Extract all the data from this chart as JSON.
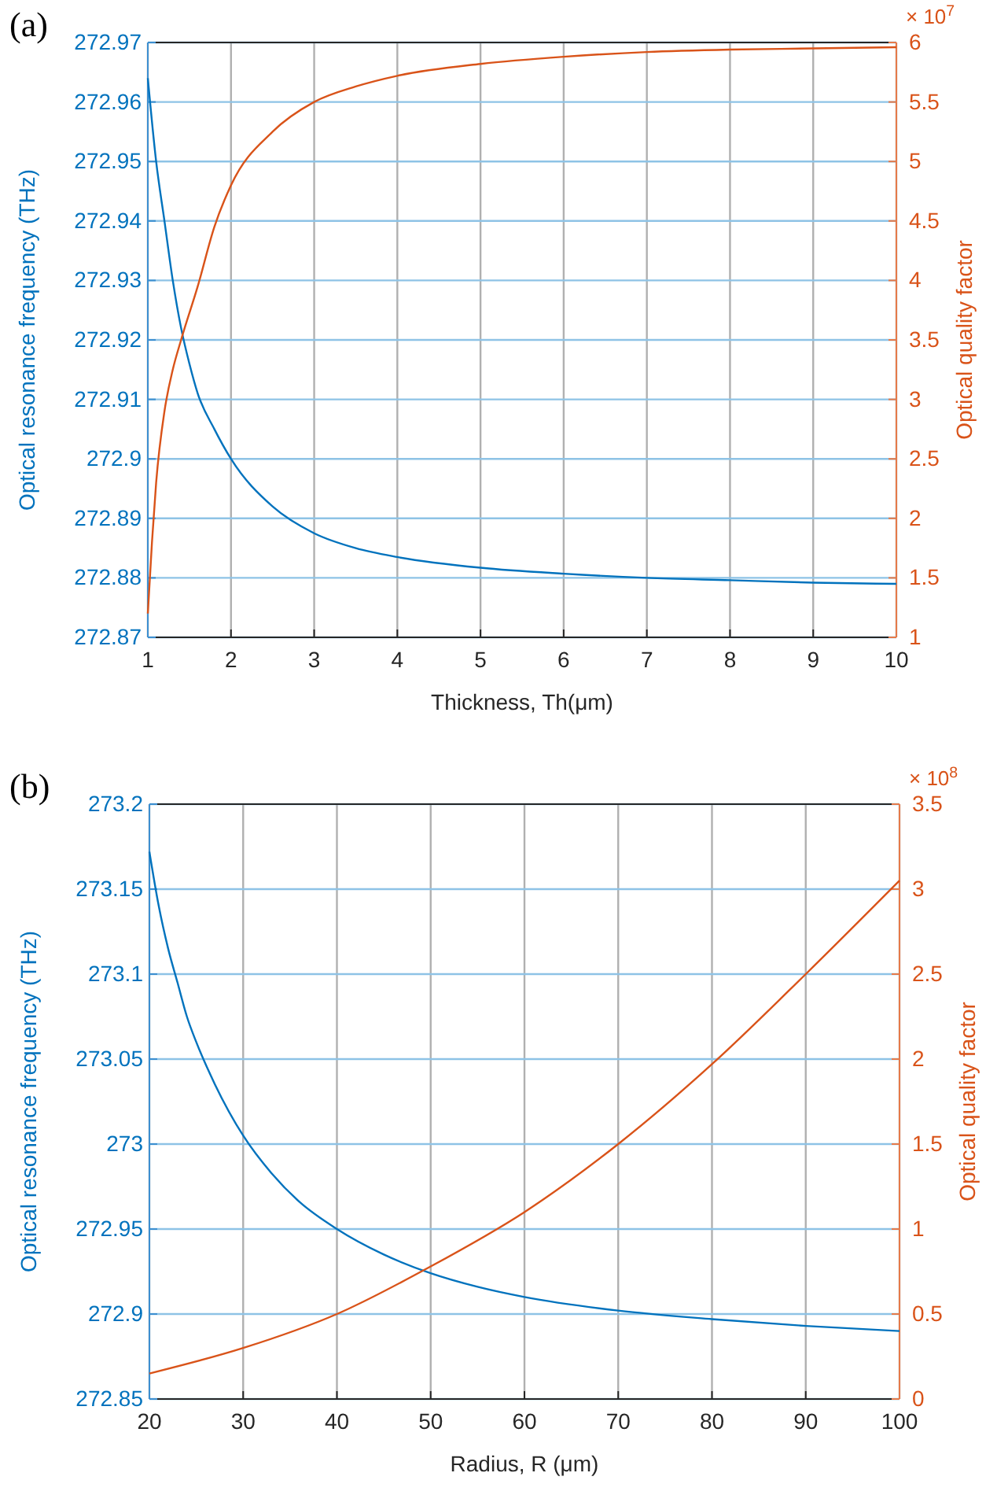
{
  "chart_data": [
    {
      "type": "line",
      "title": "(a)",
      "xlabel": "Thickness, Th(μm)",
      "ylabel": "Optical resonance frequency (THz)",
      "y2label": "Optical quality factor",
      "annotations": [
        "× 10$^{7}$"
      ],
      "grid": true,
      "xlim": [
        1,
        10
      ],
      "xticks": [
        1,
        2,
        3,
        4,
        5,
        6,
        7,
        8,
        9,
        10
      ],
      "ylim": [
        272.87,
        272.97
      ],
      "yticks": [
        272.87,
        272.88,
        272.89,
        {
          "value": 272.9,
          "label": "272.9"
        },
        272.91,
        272.92,
        272.93,
        272.94,
        272.95,
        272.96,
        272.97
      ],
      "y2lim": [
        1,
        6
      ],
      "y2ticks": [
        1,
        1.5,
        2,
        2.5,
        3,
        3.5,
        4,
        4.5,
        5,
        5.5,
        6
      ],
      "series": [
        {
          "color": "#0072bd",
          "x": [
            1,
            1.1,
            1.2,
            1.3,
            1.4,
            1.5,
            1.6,
            1.8,
            2,
            2.5,
            3,
            3.5,
            4,
            5,
            6,
            7,
            8,
            9,
            10
          ],
          "values": [
            272.964,
            272.95,
            272.94,
            272.93,
            272.922,
            272.916,
            272.911,
            272.905,
            272.9,
            272.892,
            272.8875,
            272.885,
            272.8835,
            272.8817,
            272.8807,
            272.88,
            272.8796,
            272.8792,
            272.879
          ]
        },
        {
          "color": "#d95319",
          "axis": "y2",
          "x": [
            1,
            1.05,
            1.1,
            1.2,
            1.3,
            1.4,
            1.6,
            1.8,
            2,
            2.5,
            3,
            3.5,
            4,
            5,
            6,
            7,
            8,
            9,
            10
          ],
          "values": [
            1.2,
            1.8,
            2.3,
            2.9,
            3.25,
            3.5,
            3.95,
            4.45,
            4.8,
            5.25,
            5.5,
            5.63,
            5.72,
            5.82,
            5.88,
            5.92,
            5.94,
            5.95,
            5.96
          ]
        }
      ]
    },
    {
      "type": "line",
      "title": "(b)",
      "xlabel": "Radius, R (μm)",
      "ylabel": "Optical resonance frequency (THz)",
      "y2label": "Optical quality factor",
      "annotations": [
        "× 10$^{8}$"
      ],
      "grid": true,
      "xlim": [
        20,
        100
      ],
      "xticks": [
        20,
        30,
        40,
        50,
        60,
        70,
        80,
        90,
        100
      ],
      "ylim": [
        272.85,
        273.2
      ],
      "yticks": [
        272.85,
        {
          "value": 272.9,
          "label": "272.9"
        },
        272.95,
        {
          "value": 273,
          "label": "273"
        },
        273.05,
        {
          "value": 273.1,
          "label": "273.1"
        },
        273.15,
        {
          "value": 273.2,
          "label": "273.2"
        }
      ],
      "y2lim": [
        0,
        3.5
      ],
      "y2ticks": [
        0,
        0.5,
        1,
        1.5,
        2,
        2.5,
        3,
        3.5
      ],
      "series": [
        {
          "color": "#0072bd",
          "x": [
            20,
            21,
            22,
            23,
            24,
            25,
            27,
            30,
            33,
            36,
            40,
            45,
            50,
            55,
            60,
            70,
            80,
            90,
            100
          ],
          "values": [
            273.172,
            273.14,
            273.115,
            273.095,
            273.075,
            273.06,
            273.035,
            273.005,
            272.983,
            272.966,
            272.95,
            272.935,
            272.924,
            272.916,
            272.91,
            272.902,
            272.897,
            272.893,
            272.89
          ]
        },
        {
          "color": "#d95319",
          "axis": "y2",
          "x": [
            20,
            30,
            40,
            50,
            60,
            70,
            80,
            90,
            100
          ],
          "values": [
            0.15,
            0.3,
            0.5,
            0.78,
            1.1,
            1.5,
            1.97,
            2.5,
            3.05
          ]
        }
      ]
    }
  ]
}
